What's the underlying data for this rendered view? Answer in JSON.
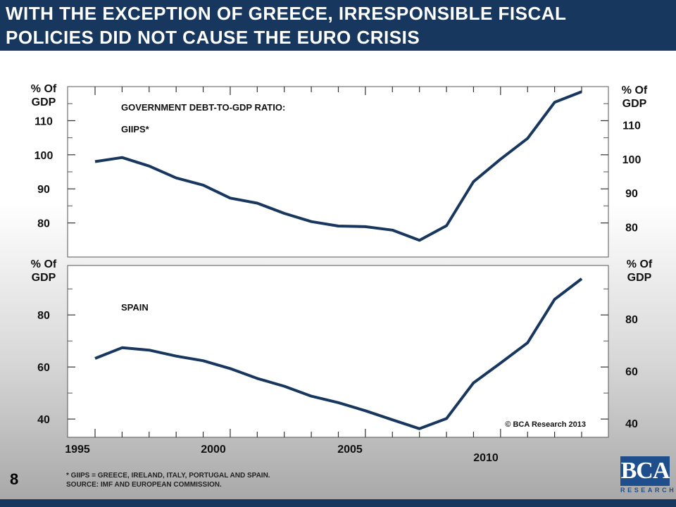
{
  "header": {
    "title_line1": "WITH THE EXCEPTION OF GREECE, IRRESPONSIBLE FISCAL",
    "title_line2": "POLICIES DID NOT CAUSE THE EURO CRISIS"
  },
  "page_number": "8",
  "footnotes": {
    "line1": "* GIIPS = GREECE, IRELAND, ITALY, PORTUGAL AND SPAIN.",
    "line2": "SOURCE: IMF AND EUROPEAN COMMISSION."
  },
  "logo": {
    "main": "BCA",
    "sub": "RESEARCH"
  },
  "colors": {
    "header": "#17375e",
    "line": "#17375e"
  },
  "chart_data": [
    {
      "type": "line",
      "panel": "top",
      "title": "GOVERNMENT DEBT-TO-GDP RATIO:",
      "subtitle": "GIIPS*",
      "ylabel_left": [
        "% Of",
        "GDP"
      ],
      "ylabel_right": [
        "% Of",
        "GDP"
      ],
      "ylim": [
        70,
        120
      ],
      "yticks": [
        80,
        90,
        100,
        110
      ],
      "x": [
        1995,
        1996,
        1997,
        1998,
        1999,
        2000,
        2001,
        2002,
        2003,
        2004,
        2005,
        2006,
        2007,
        2008,
        2009,
        2010,
        2011,
        2012,
        2013
      ],
      "values": [
        98,
        99.2,
        96.7,
        93.2,
        91.1,
        87.3,
        85.8,
        82.8,
        80.4,
        79.1,
        78.9,
        77.9,
        74.9,
        79.2,
        92.1,
        98.7,
        104.8,
        115.4,
        118.5
      ]
    },
    {
      "type": "line",
      "panel": "bottom",
      "title": "SPAIN",
      "ylabel_left": [
        "% Of",
        "GDP"
      ],
      "ylabel_right": [
        "% Of",
        "GDP"
      ],
      "ylim": [
        33,
        99
      ],
      "yticks": [
        40,
        60,
        80
      ],
      "x": [
        1995,
        1996,
        1997,
        1998,
        1999,
        2000,
        2001,
        2002,
        2003,
        2004,
        2005,
        2006,
        2007,
        2008,
        2009,
        2010,
        2011,
        2012,
        2013
      ],
      "values": [
        63.3,
        67.4,
        66.5,
        64.2,
        62.4,
        59.4,
        55.6,
        52.6,
        48.8,
        46.3,
        43.2,
        39.7,
        36.3,
        40.2,
        53.9,
        61.5,
        69.3,
        86,
        93.9
      ],
      "xticks": [
        "1995",
        "2000",
        "2005",
        "2010"
      ],
      "annotation": "© BCA  Research  2013"
    }
  ]
}
